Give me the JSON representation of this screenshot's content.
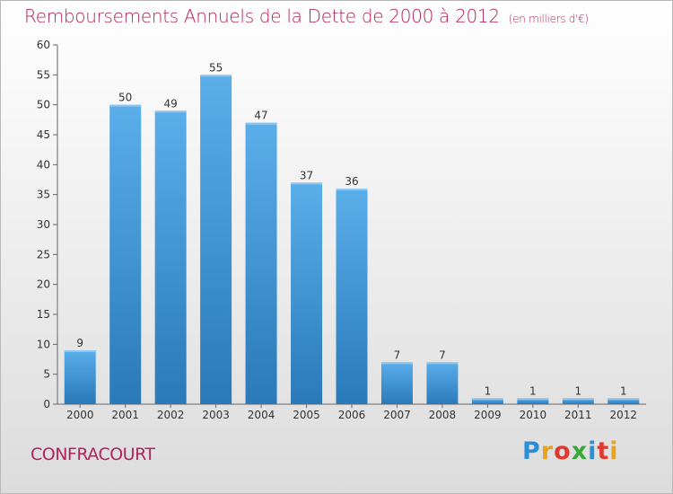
{
  "header": {
    "title": "Remboursements Annuels de la Dette de 2000 à 2012",
    "unit": "(en milliers d'€)"
  },
  "footer": {
    "commune": "CONFRACOURT",
    "logo_letters": [
      "P",
      "r",
      "o",
      "x",
      "i",
      "t",
      "i"
    ],
    "logo_colors": [
      "#2a8fd6",
      "#e8a11c",
      "#e03a2f",
      "#3aa63a",
      "#2a8fd6",
      "#e03a2f",
      "#e8a11c"
    ]
  },
  "colors": {
    "bar_light": "#5aaeea",
    "bar_dark": "#2a79b9",
    "axis": "#666666",
    "title": "#b2245a"
  },
  "chart_data": {
    "type": "bar",
    "title": "Remboursements Annuels de la Dette de 2000 à 2012",
    "subtitle": "(en milliers d'€)",
    "categories": [
      "2000",
      "2001",
      "2002",
      "2003",
      "2004",
      "2005",
      "2006",
      "2007",
      "2008",
      "2009",
      "2010",
      "2011",
      "2012"
    ],
    "values": [
      9,
      50,
      49,
      55,
      47,
      37,
      36,
      7,
      7,
      1,
      1,
      1,
      1
    ],
    "ylim": [
      0,
      60
    ],
    "yticks": [
      0,
      5,
      10,
      15,
      20,
      25,
      30,
      35,
      40,
      45,
      50,
      55,
      60
    ],
    "grid": false,
    "data_labels": true
  }
}
